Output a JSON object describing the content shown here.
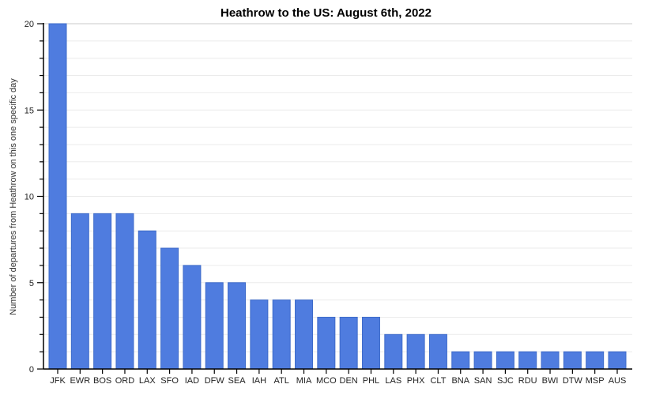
{
  "chart_data": {
    "type": "bar",
    "title": "Heathrow to the US: August 6th, 2022",
    "ylabel": "Number of departures from Heathrow on this one specific day",
    "xlabel": "",
    "categories": [
      "JFK",
      "EWR",
      "BOS",
      "ORD",
      "LAX",
      "SFO",
      "IAD",
      "DFW",
      "SEA",
      "IAH",
      "ATL",
      "MIA",
      "MCO",
      "DEN",
      "PHL",
      "LAS",
      "PHX",
      "CLT",
      "BNA",
      "SAN",
      "SJC",
      "RDU",
      "BWI",
      "DTW",
      "MSP",
      "AUS"
    ],
    "values": [
      20,
      9,
      9,
      9,
      8,
      7,
      6,
      5,
      5,
      4,
      4,
      4,
      3,
      3,
      3,
      2,
      2,
      2,
      1,
      1,
      1,
      1,
      1,
      1,
      1,
      1
    ],
    "ylim": [
      0,
      20
    ],
    "ytick_interval": 5,
    "minor_tick_interval": 1,
    "ytick_labels": [
      "0",
      "5",
      "10",
      "15",
      "20"
    ],
    "grid": "horizontal gridlines every 1 unit",
    "legend": "none",
    "colors": {
      "bar_fill": "#4f7cdf",
      "bar_border": "#3e6bc9",
      "gridline": "#ebebeb",
      "top_gridline": "#c9c9c9",
      "axis": "#000000",
      "tick_label": "#222222",
      "background": "#ffffff"
    }
  }
}
